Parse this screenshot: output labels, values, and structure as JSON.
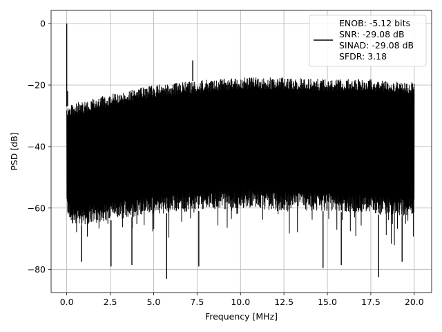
{
  "chart_data": {
    "type": "line",
    "title": "",
    "xlabel": "Frequency [MHz]",
    "ylabel": "PSD [dB]",
    "xlim": [
      -0.9,
      21.0
    ],
    "ylim": [
      -87.5,
      4.3
    ],
    "xticks": [
      0.0,
      2.5,
      5.0,
      7.5,
      10.0,
      12.5,
      15.0,
      17.5,
      20.0
    ],
    "xtick_labels": [
      "0.0",
      "2.5",
      "5.0",
      "7.5",
      "10.0",
      "12.5",
      "15.0",
      "17.5",
      "20.0"
    ],
    "yticks": [
      0,
      -20,
      -40,
      -60,
      -80
    ],
    "ytick_labels": [
      "0",
      "−20",
      "−40",
      "−60",
      "−80"
    ],
    "grid": true,
    "legend_position": "top-right",
    "series": [
      {
        "name": "ENOB: -5.12 bits\nSNR: -29.08 dB\nSINAD: -29.08 dB\nSFDR: 3.18",
        "color": "#000000",
        "x_range": [
          0.0,
          20.0
        ],
        "envelope_upper": [
          [
            0.0,
            -27
          ],
          [
            0.3,
            -26
          ],
          [
            1.0,
            -25
          ],
          [
            2.5,
            -23
          ],
          [
            5.0,
            -20
          ],
          [
            7.5,
            -18.5
          ],
          [
            10.0,
            -17.5
          ],
          [
            12.5,
            -17.5
          ],
          [
            15.0,
            -18
          ],
          [
            17.5,
            -18
          ],
          [
            20.0,
            -19
          ]
        ],
        "envelope_lower": [
          [
            0.0,
            -63
          ],
          [
            0.5,
            -66
          ],
          [
            2.5,
            -64
          ],
          [
            5.0,
            -62
          ],
          [
            7.5,
            -61
          ],
          [
            10.0,
            -60
          ],
          [
            12.5,
            -61
          ],
          [
            15.0,
            -61
          ],
          [
            17.5,
            -62
          ],
          [
            20.0,
            -63
          ]
        ],
        "peaks": [
          [
            0.0,
            0.0
          ],
          [
            7.25,
            -12
          ],
          [
            0.05,
            -22
          ]
        ],
        "deep_dips": [
          [
            5.75,
            -83
          ],
          [
            17.95,
            -82.5
          ],
          [
            7.6,
            -79
          ],
          [
            2.55,
            -79
          ],
          [
            3.75,
            -78.5
          ],
          [
            14.75,
            -79.5
          ],
          [
            15.8,
            -78.5
          ],
          [
            0.85,
            -77.5
          ],
          [
            19.3,
            -77.5
          ]
        ]
      }
    ]
  },
  "legend": {
    "lines": [
      "ENOB: -5.12 bits",
      "SNR: -29.08 dB",
      "SINAD: -29.08 dB",
      "SFDR: 3.18"
    ]
  }
}
